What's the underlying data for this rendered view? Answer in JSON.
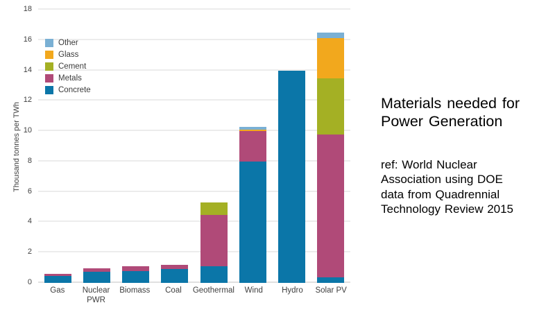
{
  "text_panel": {
    "title": "Materials needed for\nPower Generation",
    "reference": "ref: World Nuclear\nAssociation using DOE\ndata from Quadrennial\nTechnology Review 2015"
  },
  "chart_data": {
    "type": "bar",
    "stacked": true,
    "title": "",
    "xlabel": "",
    "ylabel": "Thousand tonnes per TWh",
    "ylim": [
      0,
      18
    ],
    "ytick_step": 2,
    "grid": true,
    "legend_position": "top-left-inside",
    "legend_order": [
      "Other",
      "Glass",
      "Cement",
      "Metals",
      "Concrete"
    ],
    "categories": [
      "Gas",
      "Nuclear PWR",
      "Biomass",
      "Coal",
      "Geothermal",
      "Wind",
      "Hydro",
      "Solar PV"
    ],
    "series": [
      {
        "name": "Concrete",
        "color": "#0b76a8",
        "values": [
          0.45,
          0.75,
          0.8,
          0.9,
          1.1,
          8.0,
          14.0,
          0.35
        ]
      },
      {
        "name": "Metals",
        "color": "#b04a78",
        "values": [
          0.15,
          0.2,
          0.3,
          0.3,
          3.4,
          2.0,
          0,
          9.45
        ]
      },
      {
        "name": "Cement",
        "color": "#a4b024",
        "values": [
          0,
          0,
          0,
          0,
          0.8,
          0,
          0,
          3.7
        ]
      },
      {
        "name": "Glass",
        "color": "#f2a81d",
        "values": [
          0,
          0,
          0,
          0,
          0,
          0.1,
          0,
          2.65
        ]
      },
      {
        "name": "Other",
        "color": "#7ab0d4",
        "values": [
          0,
          0,
          0,
          0,
          0,
          0.2,
          0,
          0.35
        ]
      }
    ],
    "totals": [
      0.6,
      0.95,
      1.1,
      1.2,
      5.3,
      10.3,
      14.0,
      16.5
    ],
    "gridline_color": "#ececec",
    "label_color": "#404040"
  }
}
